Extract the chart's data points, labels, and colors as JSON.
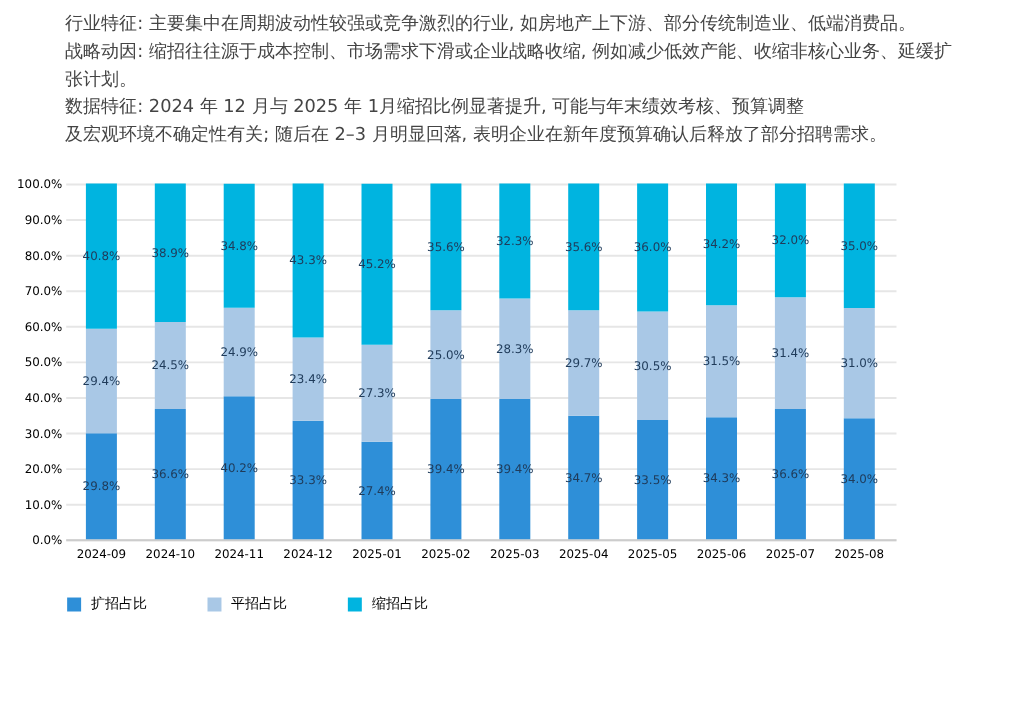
{
  "chart_data": {
    "type": "bar",
    "stacked": true,
    "annotations": [
      "行业特征: 主要集中在周期波动性较强或竞争激烈的行业, 如房地产上下游、部分传统制造业、低端消费品。",
      "战略动因: 缩招往往源于成本控制、市场需求下滑或企业战略收缩, 例如减少低效产能、收缩非核心业务、延缓扩张计划。",
      "数据特征: 2024 年 12 月与 2025 年 1月缩招比例显著提升, 可能与年末绩效考核、预算调整及宏观环境不确定性有关; 随后在 2–3 月明显回落, 表明企业在新年度预算确认后释放了部分招聘需求。"
    ],
    "categories": [
      "2024-09",
      "2024-10",
      "2024-11",
      "2024-12",
      "2025-01",
      "2025-02",
      "2025-03",
      "2025-04",
      "2025-05",
      "2025-06",
      "2025-07",
      "2025-08"
    ],
    "series": [
      {
        "name": "扩招占比",
        "color": "#2e8fd8",
        "values": [
          29.8,
          36.6,
          40.2,
          33.3,
          27.4,
          39.4,
          39.4,
          34.7,
          33.5,
          34.3,
          36.6,
          34.0
        ],
        "value_labels": [
          "29.8%",
          "36.6%",
          "40.2%",
          "33.3%",
          "27.4%",
          "39.4%",
          "39.4%",
          "34.7%",
          "33.5%",
          "34.3%",
          "36.6%",
          "34.0%"
        ]
      },
      {
        "name": "平招占比",
        "color": "#a9c8e6",
        "values": [
          29.4,
          24.5,
          24.9,
          23.4,
          27.3,
          25.0,
          28.3,
          29.7,
          30.5,
          31.5,
          31.4,
          31.0
        ],
        "value_labels": [
          "29.4%",
          "24.5%",
          "24.9%",
          "23.4%",
          "27.3%",
          "25.0%",
          "28.3%",
          "29.7%",
          "30.5%",
          "31.5%",
          "31.4%",
          "31.0%"
        ]
      },
      {
        "name": "缩招占比",
        "color": "#00b4e0",
        "values": [
          40.8,
          38.9,
          34.8,
          43.3,
          45.2,
          35.6,
          32.3,
          35.6,
          36.0,
          34.2,
          32.0,
          35.0
        ],
        "value_labels": [
          "40.8%",
          "38.9%",
          "34.8%",
          "43.3%",
          "45.2%",
          "35.6%",
          "32.3%",
          "35.6%",
          "36.0%",
          "34.2%",
          "32.0%",
          "35.0%"
        ]
      }
    ],
    "ylim": [
      0,
      100
    ],
    "yticks": [
      {
        "value": 0,
        "label": "0.0%"
      },
      {
        "value": 10,
        "label": "10.0%"
      },
      {
        "value": 20,
        "label": "20.0%"
      },
      {
        "value": 30,
        "label": "30.0%"
      },
      {
        "value": 40,
        "label": "40.0%"
      },
      {
        "value": 50,
        "label": "50.0%"
      },
      {
        "value": 60,
        "label": "60.0%"
      },
      {
        "value": 70,
        "label": "70.0%"
      },
      {
        "value": 80,
        "label": "80.0%"
      },
      {
        "value": 90,
        "label": "90.0%"
      },
      {
        "value": 100,
        "label": "100.0%"
      }
    ],
    "grid": "y",
    "legend": "bottom"
  }
}
